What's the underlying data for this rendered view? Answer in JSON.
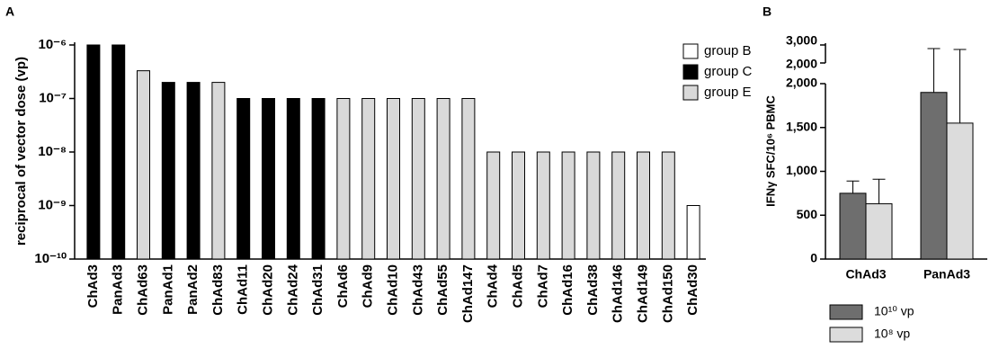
{
  "chart_data": [
    {
      "type": "bar",
      "panel": "A",
      "ylabel": "reciprocal of vector dose (vp)",
      "log": true,
      "grid": false,
      "legend": "top-right",
      "categories": [
        "ChAd3",
        "PanAd3",
        "ChAd63",
        "PanAd1",
        "PanAd2",
        "ChAd83",
        "ChAd11",
        "ChAd20",
        "ChAd24",
        "ChAd31",
        "ChAd6",
        "ChAd9",
        "ChAd10",
        "ChAd43",
        "ChAd55",
        "ChAd147",
        "ChAd4",
        "ChAd5",
        "ChAd7",
        "ChAd16",
        "ChAd38",
        "ChAd146",
        "ChAd149",
        "ChAd150",
        "ChAd30"
      ],
      "series": [
        {
          "name": "group B",
          "color": "#ffffff",
          "values": [
            null,
            null,
            null,
            null,
            null,
            null,
            null,
            null,
            null,
            null,
            null,
            null,
            null,
            null,
            null,
            null,
            null,
            null,
            null,
            null,
            null,
            null,
            null,
            null,
            1e-09
          ]
        },
        {
          "name": "group C",
          "color": "#000000",
          "values": [
            1e-06,
            1e-06,
            null,
            2e-07,
            2e-07,
            null,
            1e-07,
            1e-07,
            1e-07,
            1e-07,
            null,
            null,
            null,
            null,
            null,
            null,
            null,
            null,
            null,
            null,
            null,
            null,
            null,
            null,
            null
          ]
        },
        {
          "name": "group E",
          "color": "#d9d9d9",
          "values": [
            null,
            null,
            3.3e-07,
            null,
            null,
            2e-07,
            null,
            null,
            null,
            null,
            1e-07,
            1e-07,
            1e-07,
            1e-07,
            1e-07,
            1e-07,
            1e-08,
            1e-08,
            1e-08,
            1e-08,
            1e-08,
            1e-08,
            1e-08,
            1e-08,
            null
          ]
        }
      ],
      "ylim": [
        1e-10,
        1e-06
      ],
      "yticks": [
        {
          "value": 1e-10,
          "label": "10⁻¹⁰"
        },
        {
          "value": 1e-09,
          "label": "10⁻⁹"
        },
        {
          "value": 1e-08,
          "label": "10⁻⁸"
        },
        {
          "value": 1e-07,
          "label": "10⁻⁷"
        },
        {
          "value": 1e-06,
          "label": "10⁻⁶"
        }
      ]
    },
    {
      "type": "grouped_bar",
      "panel": "B",
      "ylabel": "IFNγ SFC/10⁶ PBMC",
      "legend": "bottom",
      "categories": [
        "ChAd3",
        "PanAd3"
      ],
      "series": [
        {
          "name": "10¹⁰ vp",
          "color": "#6e6e6e",
          "values": [
            750,
            1900
          ],
          "errors": [
            140,
            900
          ]
        },
        {
          "name": "10⁸ vp",
          "color": "#dcdcdc",
          "values": [
            630,
            1550
          ],
          "errors": [
            280,
            1200
          ]
        }
      ],
      "ylim": [
        0,
        2000
      ],
      "yticks": [
        0,
        500,
        {
          "value": 1000,
          "label": "1,000"
        },
        {
          "value": 1500,
          "label": "1,500"
        },
        {
          "value": 2000,
          "label": "2,000"
        }
      ],
      "ylim_upper": [
        2000,
        3000
      ],
      "yticks_upper": [
        {
          "value": 2000,
          "label": "2,000"
        },
        {
          "value": 3000,
          "label": "3,000"
        }
      ]
    }
  ]
}
